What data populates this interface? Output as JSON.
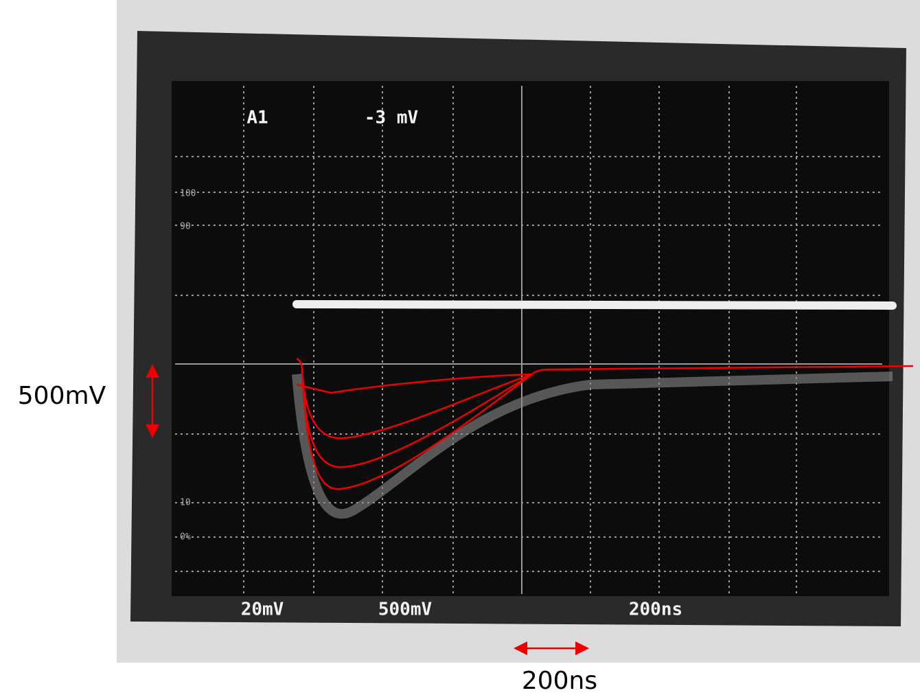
{
  "screen": {
    "channel": "A1",
    "reading": "-3 mV",
    "scale_marks": [
      "100",
      "90",
      "10",
      "0%"
    ],
    "footer": [
      "20mV",
      "500mV",
      "200ns"
    ]
  },
  "annotations": {
    "vertical_scale": "500mV",
    "horizontal_scale": "200ns"
  }
}
